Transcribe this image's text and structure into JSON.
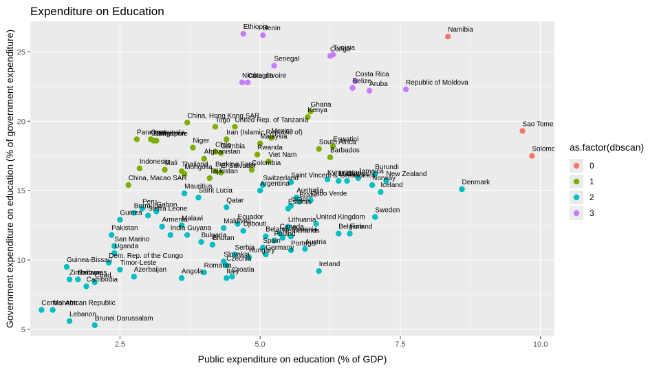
{
  "chart_data": {
    "type": "scatter",
    "title": "Expenditure on Education",
    "xlabel": "Public expenditure on education (% of GDP)",
    "ylabel": "Government expenditure on education (% of government expenditure)",
    "xlim": [
      0.9,
      10.25
    ],
    "ylim": [
      4.5,
      27.2
    ],
    "x_ticks": [
      2.5,
      5.0,
      7.5,
      10.0
    ],
    "x_tick_labels": [
      "2.5",
      "5.0",
      "7.5",
      "10.0"
    ],
    "y_ticks": [
      5,
      10,
      15,
      20,
      25
    ],
    "y_tick_labels": [
      "5",
      "10",
      "15",
      "20",
      "25"
    ],
    "grid": true,
    "legend": {
      "title": "as.factor(dbscan)",
      "placement": "right",
      "entries": [
        {
          "label": "0",
          "color": "#F8766D"
        },
        {
          "label": "1",
          "color": "#7CAE00"
        },
        {
          "label": "2",
          "color": "#00BFC4"
        },
        {
          "label": "3",
          "color": "#C77CFF"
        }
      ]
    },
    "points": [
      {
        "label": "Ethiopia",
        "x": 4.7,
        "y": 26.3,
        "cluster": 3
      },
      {
        "label": "Benin",
        "x": 5.05,
        "y": 26.2,
        "cluster": 3
      },
      {
        "label": "Namibia",
        "x": 8.35,
        "y": 26.1,
        "cluster": 0
      },
      {
        "label": "Tunisia",
        "x": 6.3,
        "y": 24.8,
        "cluster": 3
      },
      {
        "label": "Congo",
        "x": 6.25,
        "y": 24.7,
        "cluster": 3
      },
      {
        "label": "Senegal",
        "x": 5.25,
        "y": 24.0,
        "cluster": 3
      },
      {
        "label": "Nicaragua",
        "x": 4.68,
        "y": 22.8,
        "cluster": 3
      },
      {
        "label": "Côte d’Ivoire",
        "x": 4.78,
        "y": 22.8,
        "cluster": 3
      },
      {
        "label": "Costa Rica",
        "x": 6.7,
        "y": 22.9,
        "cluster": 3
      },
      {
        "label": "Belize",
        "x": 6.65,
        "y": 22.4,
        "cluster": 3
      },
      {
        "label": "Aruba",
        "x": 6.95,
        "y": 22.2,
        "cluster": 3
      },
      {
        "label": "Republic of Moldova",
        "x": 7.6,
        "y": 22.3,
        "cluster": 3
      },
      {
        "label": "Ghana",
        "x": 5.9,
        "y": 20.7,
        "cluster": 1
      },
      {
        "label": "Kenya",
        "x": 5.85,
        "y": 20.3,
        "cluster": 1
      },
      {
        "label": "China, Hong Kong SAR",
        "x": 3.7,
        "y": 19.9,
        "cluster": 1
      },
      {
        "label": "Togo",
        "x": 4.2,
        "y": 19.6,
        "cluster": 1
      },
      {
        "label": "United Rep. of Tanzania",
        "x": 4.55,
        "y": 19.6,
        "cluster": 1
      },
      {
        "label": "Sao Tome",
        "x": 9.68,
        "y": 19.3,
        "cluster": 0
      },
      {
        "label": "Guatemala",
        "x": 3.05,
        "y": 18.7,
        "cluster": 1
      },
      {
        "label": "Paraguay",
        "x": 2.8,
        "y": 18.7,
        "cluster": 1
      },
      {
        "label": "Cameroon",
        "x": 3.1,
        "y": 18.6,
        "cluster": 1
      },
      {
        "label": "Singapore",
        "x": 3.15,
        "y": 18.6,
        "cluster": 1
      },
      {
        "label": "Iran (Islamic Republic of)",
        "x": 4.4,
        "y": 18.7,
        "cluster": 1
      },
      {
        "label": "Mexico",
        "x": 5.2,
        "y": 18.8,
        "cluster": 1
      },
      {
        "label": "Malaysia",
        "x": 5.0,
        "y": 18.4,
        "cluster": 1
      },
      {
        "label": "Niger",
        "x": 3.8,
        "y": 18.1,
        "cluster": 1
      },
      {
        "label": "Chile",
        "x": 4.2,
        "y": 17.8,
        "cluster": 1
      },
      {
        "label": "Gambia",
        "x": 4.3,
        "y": 17.7,
        "cluster": 1
      },
      {
        "label": "South Africa",
        "x": 6.05,
        "y": 18.0,
        "cluster": 1
      },
      {
        "label": "Eswatini",
        "x": 6.3,
        "y": 18.2,
        "cluster": 1
      },
      {
        "label": "Rwanda",
        "x": 4.95,
        "y": 17.6,
        "cluster": 1
      },
      {
        "label": "Barbados",
        "x": 6.25,
        "y": 17.4,
        "cluster": 1
      },
      {
        "label": "Afghanistan",
        "x": 4.0,
        "y": 17.3,
        "cluster": 1
      },
      {
        "label": "Viet Nam",
        "x": 5.15,
        "y": 17.1,
        "cluster": 1
      },
      {
        "label": "Indonesia",
        "x": 2.85,
        "y": 16.6,
        "cluster": 1
      },
      {
        "label": "Mali",
        "x": 3.3,
        "y": 16.5,
        "cluster": 1
      },
      {
        "label": "Colombia",
        "x": 4.85,
        "y": 16.5,
        "cluster": 1
      },
      {
        "label": "Thailand",
        "x": 3.6,
        "y": 16.4,
        "cluster": 1
      },
      {
        "label": "Burkina Faso",
        "x": 4.2,
        "y": 16.4,
        "cluster": 1
      },
      {
        "label": "El Salvador",
        "x": 4.3,
        "y": 16.3,
        "cluster": 1
      },
      {
        "label": "Mongolia",
        "x": 3.65,
        "y": 16.2,
        "cluster": 1
      },
      {
        "label": "Tajikistan",
        "x": 4.1,
        "y": 15.9,
        "cluster": 1
      },
      {
        "label": "China, Macao SAR",
        "x": 2.65,
        "y": 15.4,
        "cluster": 1
      },
      {
        "label": "Burundi",
        "x": 7.05,
        "y": 16.2,
        "cluster": 2
      },
      {
        "label": "Jamaica",
        "x": 6.75,
        "y": 15.9,
        "cluster": 2
      },
      {
        "label": "New Zealand",
        "x": 7.25,
        "y": 15.7,
        "cluster": 2
      },
      {
        "label": "Kyrgyzstan",
        "x": 6.2,
        "y": 15.8,
        "cluster": 2
      },
      {
        "label": "Malta",
        "x": 6.4,
        "y": 15.7,
        "cluster": 2
      },
      {
        "label": "Cyprus",
        "x": 6.55,
        "y": 15.7,
        "cluster": 2
      },
      {
        "label": "Norway",
        "x": 7.0,
        "y": 15.4,
        "cluster": 2
      },
      {
        "label": "Saint Vincent & Grenadines",
        "x": 5.55,
        "y": 15.6,
        "cluster": 2
      },
      {
        "label": "Switzerland",
        "x": 5.05,
        "y": 15.4,
        "cluster": 2
      },
      {
        "label": "Argentina",
        "x": 5.0,
        "y": 15.0,
        "cluster": 2
      },
      {
        "label": "Iceland",
        "x": 7.15,
        "y": 14.9,
        "cluster": 2
      },
      {
        "label": "Denmark",
        "x": 8.6,
        "y": 15.1,
        "cluster": 2
      },
      {
        "label": "Mauritius",
        "x": 3.65,
        "y": 14.8,
        "cluster": 2
      },
      {
        "label": "Saint Lucia",
        "x": 3.9,
        "y": 14.5,
        "cluster": 2
      },
      {
        "label": "Australia",
        "x": 5.65,
        "y": 14.5,
        "cluster": 2
      },
      {
        "label": "Cabo Verde",
        "x": 5.9,
        "y": 14.3,
        "cluster": 2
      },
      {
        "label": "Brazil",
        "x": 5.7,
        "y": 14.2,
        "cluster": 2
      },
      {
        "label": "Israel",
        "x": 5.55,
        "y": 13.9,
        "cluster": 2
      },
      {
        "label": "Estonia",
        "x": 5.5,
        "y": 13.7,
        "cluster": 2
      },
      {
        "label": "Qatar",
        "x": 4.4,
        "y": 13.8,
        "cluster": 2
      },
      {
        "label": "Peru",
        "x": 2.9,
        "y": 13.7,
        "cluster": 2
      },
      {
        "label": "Gabon",
        "x": 3.15,
        "y": 13.5,
        "cluster": 2
      },
      {
        "label": "Bermuda",
        "x": 2.75,
        "y": 13.4,
        "cluster": 2
      },
      {
        "label": "Sierra Leone",
        "x": 3.0,
        "y": 13.2,
        "cluster": 2
      },
      {
        "label": "Guinea",
        "x": 2.5,
        "y": 12.9,
        "cluster": 2
      },
      {
        "label": "Sweden",
        "x": 7.05,
        "y": 13.1,
        "cluster": 2
      },
      {
        "label": "United Kingdom",
        "x": 6.0,
        "y": 12.6,
        "cluster": 2
      },
      {
        "label": "Ecuador",
        "x": 4.6,
        "y": 12.6,
        "cluster": 2
      },
      {
        "label": "Lithuania",
        "x": 5.5,
        "y": 12.4,
        "cluster": 2
      },
      {
        "label": "Armenia",
        "x": 3.25,
        "y": 12.4,
        "cluster": 2
      },
      {
        "label": "Malawi",
        "x": 3.6,
        "y": 12.5,
        "cluster": 2
      },
      {
        "label": "Maldives",
        "x": 4.35,
        "y": 12.3,
        "cluster": 2
      },
      {
        "label": "Djibouti",
        "x": 4.7,
        "y": 12.1,
        "cluster": 2
      },
      {
        "label": "Canada",
        "x": 5.35,
        "y": 11.9,
        "cluster": 2
      },
      {
        "label": "Pakistan",
        "x": 2.35,
        "y": 11.8,
        "cluster": 2
      },
      {
        "label": "India",
        "x": 3.4,
        "y": 11.8,
        "cluster": 2
      },
      {
        "label": "Guyana",
        "x": 3.7,
        "y": 11.8,
        "cluster": 2
      },
      {
        "label": "Slovenia",
        "x": 5.55,
        "y": 11.7,
        "cluster": 2
      },
      {
        "label": "Belgium",
        "x": 6.4,
        "y": 11.9,
        "cluster": 2
      },
      {
        "label": "Finland",
        "x": 6.6,
        "y": 11.9,
        "cluster": 2
      },
      {
        "label": "Belarus",
        "x": 5.1,
        "y": 11.7,
        "cluster": 2
      },
      {
        "label": "Netherlands",
        "x": 5.4,
        "y": 11.6,
        "cluster": 2
      },
      {
        "label": "Poland",
        "x": 5.25,
        "y": 11.4,
        "cluster": 2
      },
      {
        "label": "Bulgaria",
        "x": 3.95,
        "y": 11.3,
        "cluster": 2
      },
      {
        "label": "Bhutan",
        "x": 4.15,
        "y": 11.1,
        "cluster": 2
      },
      {
        "label": "San Marino",
        "x": 2.4,
        "y": 11.0,
        "cluster": 2
      },
      {
        "label": "Austria",
        "x": 5.8,
        "y": 10.8,
        "cluster": 2
      },
      {
        "label": "Spain",
        "x": 5.05,
        "y": 10.9,
        "cluster": 2
      },
      {
        "label": "Portugal",
        "x": 5.55,
        "y": 10.7,
        "cluster": 2
      },
      {
        "label": "Uganda",
        "x": 2.4,
        "y": 10.5,
        "cluster": 2
      },
      {
        "label": "Serbia",
        "x": 4.55,
        "y": 10.4,
        "cluster": 2
      },
      {
        "label": "Germany",
        "x": 5.1,
        "y": 10.4,
        "cluster": 2
      },
      {
        "label": "Hungary",
        "x": 4.8,
        "y": 10.2,
        "cluster": 2
      },
      {
        "label": "Dem. Rep. of the Congo",
        "x": 2.3,
        "y": 9.8,
        "cluster": 2
      },
      {
        "label": "Slovakia",
        "x": 4.35,
        "y": 9.9,
        "cluster": 2
      },
      {
        "label": "Czechia",
        "x": 4.4,
        "y": 9.6,
        "cluster": 2
      },
      {
        "label": "Ireland",
        "x": 6.05,
        "y": 9.2,
        "cluster": 2
      },
      {
        "label": "Guinea-Bissau",
        "x": 1.55,
        "y": 9.5,
        "cluster": 2
      },
      {
        "label": "Timor-Leste",
        "x": 2.5,
        "y": 9.3,
        "cluster": 2
      },
      {
        "label": "Romania",
        "x": 4.0,
        "y": 9.1,
        "cluster": 2
      },
      {
        "label": "Azerbaijan",
        "x": 2.75,
        "y": 8.8,
        "cluster": 2
      },
      {
        "label": "Angola",
        "x": 3.6,
        "y": 8.7,
        "cluster": 2
      },
      {
        "label": "Croatia",
        "x": 4.5,
        "y": 8.8,
        "cluster": 2
      },
      {
        "label": "Italy",
        "x": 4.4,
        "y": 8.7,
        "cluster": 2
      },
      {
        "label": "Zimbabwe",
        "x": 1.6,
        "y": 8.6,
        "cluster": 2
      },
      {
        "label": "Bahamas",
        "x": 1.75,
        "y": 8.6,
        "cluster": 2
      },
      {
        "label": "Chad",
        "x": 2.05,
        "y": 8.4,
        "cluster": 2
      },
      {
        "label": "Cambodia",
        "x": 1.9,
        "y": 8.1,
        "cluster": 2
      },
      {
        "label": "Central African Republic",
        "x": 1.1,
        "y": 6.4,
        "cluster": 2
      },
      {
        "label": "Monaco",
        "x": 1.3,
        "y": 6.4,
        "cluster": 2
      },
      {
        "label": "Lebanon",
        "x": 1.6,
        "y": 5.6,
        "cluster": 2
      },
      {
        "label": "Brunei Darussalam",
        "x": 2.05,
        "y": 5.3,
        "cluster": 2
      },
      {
        "label": "Solomon Islands",
        "x": 9.85,
        "y": 17.5,
        "cluster": 0
      }
    ]
  }
}
